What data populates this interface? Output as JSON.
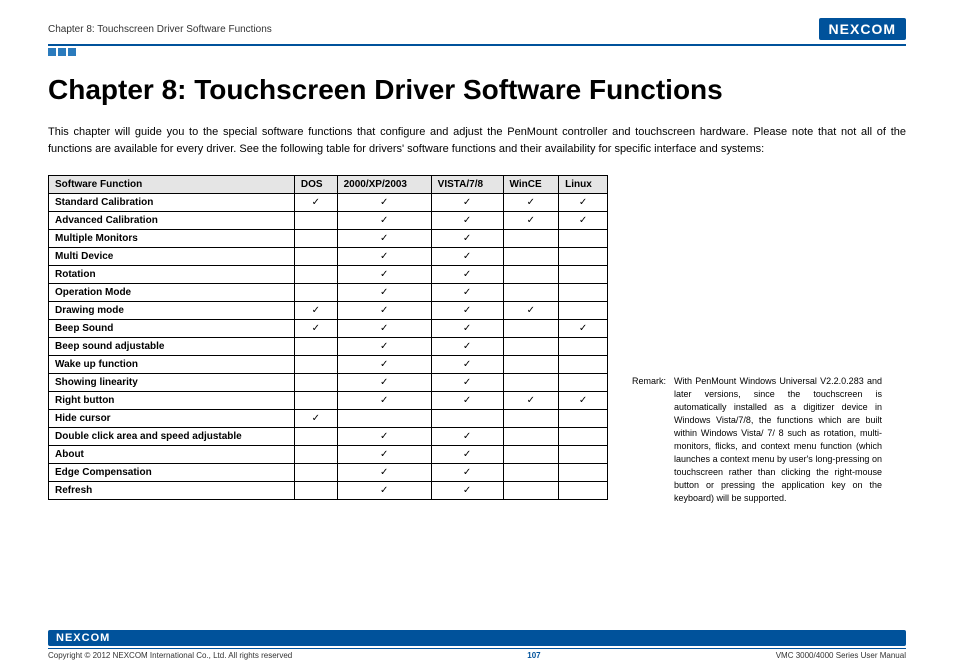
{
  "header": {
    "chapter_label": "Chapter 8: Touchscreen Driver Software Functions",
    "logo_text": "NEXCOM"
  },
  "title": "Chapter 8: Touchscreen Driver Software Functions",
  "intro": "This chapter will guide you to the special software functions that configure and adjust the PenMount controller and touchscreen hardware. Please note that not all of the functions are available for every driver. See the following table for drivers' software functions and their availability for specific interface and systems:",
  "table": {
    "columns": [
      "Software Function",
      "DOS",
      "2000/XP/2003",
      "VISTA/7/8",
      "WinCE",
      "Linux"
    ],
    "rows": [
      {
        "fn": "Standard Calibration",
        "v": [
          true,
          true,
          true,
          true,
          true
        ]
      },
      {
        "fn": "Advanced Calibration",
        "v": [
          false,
          true,
          true,
          true,
          true
        ]
      },
      {
        "fn": "Multiple Monitors",
        "v": [
          false,
          true,
          true,
          false,
          false
        ]
      },
      {
        "fn": "Multi Device",
        "v": [
          false,
          true,
          true,
          false,
          false
        ]
      },
      {
        "fn": "Rotation",
        "v": [
          false,
          true,
          true,
          false,
          false
        ]
      },
      {
        "fn": "Operation Mode",
        "v": [
          false,
          true,
          true,
          false,
          false
        ]
      },
      {
        "fn": "Drawing mode",
        "v": [
          true,
          true,
          true,
          true,
          false
        ]
      },
      {
        "fn": "Beep Sound",
        "v": [
          true,
          true,
          true,
          false,
          true
        ]
      },
      {
        "fn": "Beep sound adjustable",
        "v": [
          false,
          true,
          true,
          false,
          false
        ]
      },
      {
        "fn": "Wake up function",
        "v": [
          false,
          true,
          true,
          false,
          false
        ]
      },
      {
        "fn": "Showing linearity",
        "v": [
          false,
          true,
          true,
          false,
          false
        ]
      },
      {
        "fn": "Right button",
        "v": [
          false,
          true,
          true,
          true,
          true
        ]
      },
      {
        "fn": "Hide cursor",
        "v": [
          true,
          false,
          false,
          false,
          false
        ]
      },
      {
        "fn": "Double click area and speed adjustable",
        "v": [
          false,
          true,
          true,
          false,
          false
        ]
      },
      {
        "fn": "About",
        "v": [
          false,
          true,
          true,
          false,
          false
        ]
      },
      {
        "fn": "Edge Compensation",
        "v": [
          false,
          true,
          true,
          false,
          false
        ]
      },
      {
        "fn": "Refresh",
        "v": [
          false,
          true,
          true,
          false,
          false
        ]
      }
    ],
    "check_glyph": "✓"
  },
  "remark": {
    "label": "Remark:",
    "text": "With PenMount Windows Universal V2.2.0.283 and later versions, since the touchscreen is automatically installed as a digitizer device in Windows Vista/7/8, the functions which are built within Windows Vista/ 7/ 8 such as rotation, multi-monitors, flicks, and context menu function (which launches a context menu by user's long-pressing on touchscreen rather than clicking the right-mouse button or pressing the application key on the keyboard) will be supported."
  },
  "footer": {
    "logo_text": "NEXCOM",
    "copyright": "Copyright © 2012 NEXCOM International Co., Ltd. All rights reserved",
    "page_number": "107",
    "doc_ref": "VMC 3000/4000 Series User Manual"
  },
  "colors": {
    "brand_blue": "#00529b",
    "square_blue": "#2b7bbd",
    "header_gray": "#e5e5e5",
    "text": "#000000"
  }
}
